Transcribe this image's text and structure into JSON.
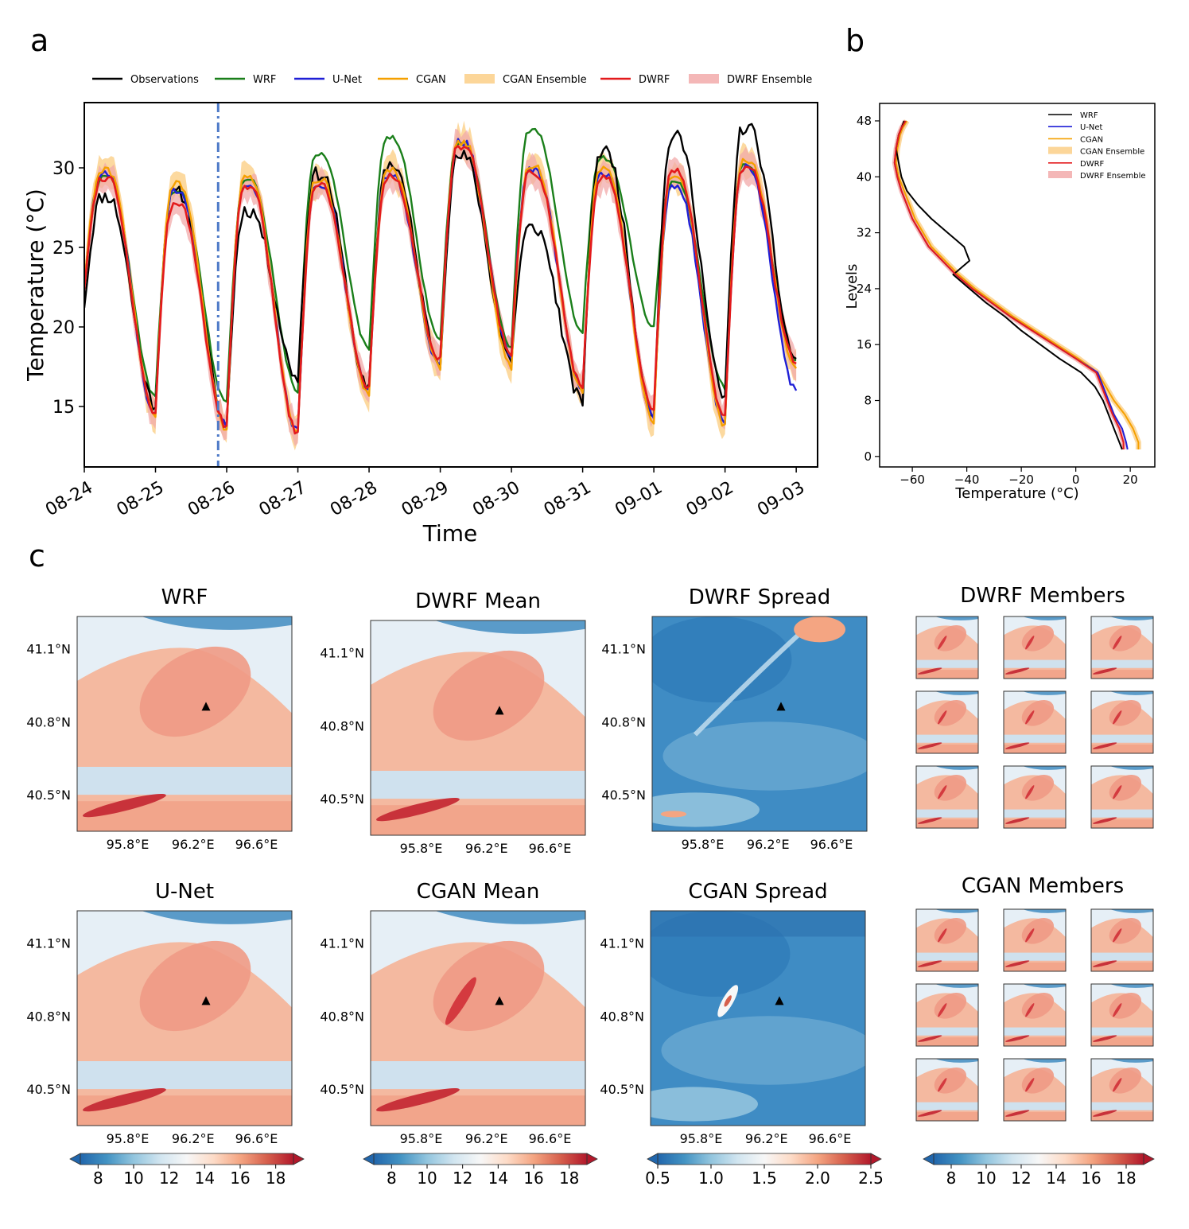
{
  "panels": {
    "a": "a",
    "b": "b",
    "c": "c"
  },
  "chart_data": [
    {
      "type": "line",
      "panel": "a",
      "xlabel": "Time",
      "ylabel": "Temperature (°C)",
      "xlim": [
        0,
        10.3
      ],
      "ylim": [
        11.2,
        34.1
      ],
      "xticks": [
        0,
        1,
        2,
        3,
        4,
        5,
        6,
        7,
        8,
        9,
        10
      ],
      "xticklabels": [
        "08-24",
        "08-25",
        "08-26",
        "08-27",
        "08-28",
        "08-29",
        "08-30",
        "08-31",
        "09-01",
        "09-02",
        "09-03"
      ],
      "yticks": [
        15,
        20,
        25,
        30
      ],
      "yticklabels": [
        "15",
        "20",
        "25",
        "30"
      ],
      "vline_x": 1.88,
      "legend": [
        "Observations",
        "WRF",
        "U-Net",
        "CGAN",
        "CGAN Ensemble",
        "DWRF",
        "DWRF Ensemble"
      ],
      "colors": {
        "Observations": "#000000",
        "WRF": "#1a7f1a",
        "U-Net": "#1f1fd6",
        "CGAN": "#f5a000",
        "CGAN Ensemble": "#fbcf87",
        "DWRF": "#e31a1c",
        "DWRF Ensemble": "#f2aaaa",
        "vline": "#4d79c7"
      },
      "daily_extremes": {
        "Observations": {
          "max": [
            28.2,
            28.4,
            27.3,
            29.6,
            30.2,
            30.7,
            26.2,
            31.0,
            31.9,
            32.5
          ],
          "min": [
            21.2,
            15.1,
            13.8,
            16.8,
            16.0,
            17.8,
            18.0,
            15.3,
            14.5,
            15.5
          ],
          "end": 18.0
        },
        "WRF": {
          "max": [
            29.4,
            28.5,
            29.2,
            30.9,
            31.9,
            31.6,
            32.3,
            30.6,
            29.1,
            30.2
          ],
          "min": [
            22.5,
            15.6,
            15.2,
            16.0,
            18.6,
            19.2,
            18.8,
            19.7,
            20.0,
            16.2
          ],
          "end": 17.9
        },
        "U-Net": {
          "max": [
            29.6,
            28.6,
            29.0,
            29.0,
            29.5,
            31.6,
            29.9,
            29.6,
            28.7,
            30.0
          ],
          "min": [
            22.8,
            14.4,
            13.8,
            13.4,
            16.0,
            17.5,
            18.2,
            16.2,
            14.5,
            14.0
          ],
          "end": 16.0
        },
        "CGAN": {
          "max": [
            29.8,
            29.0,
            29.3,
            29.2,
            29.8,
            31.6,
            30.1,
            30.0,
            29.5,
            30.5
          ],
          "min": [
            22.8,
            14.5,
            13.6,
            13.3,
            15.8,
            17.4,
            17.5,
            16.0,
            14.0,
            13.8
          ],
          "end": 17.4
        },
        "DWRF": {
          "max": [
            29.4,
            27.7,
            28.8,
            28.9,
            29.4,
            31.4,
            29.7,
            29.3,
            29.8,
            30.0
          ],
          "min": [
            22.5,
            14.6,
            13.7,
            13.3,
            16.2,
            18.0,
            18.4,
            16.3,
            14.7,
            14.2
          ],
          "end": 17.7
        }
      }
    },
    {
      "type": "line",
      "panel": "b",
      "xlabel": "Temperature (°C)",
      "ylabel": "Levels",
      "xlim": [
        -72,
        29
      ],
      "ylim": [
        -1.5,
        50.5
      ],
      "xticks": [
        -60,
        -40,
        -20,
        0,
        20
      ],
      "xticklabels": [
        "−60",
        "−40",
        "−20",
        "0",
        "20"
      ],
      "yticks": [
        0,
        8,
        16,
        24,
        32,
        40,
        48
      ],
      "yticklabels": [
        "0",
        "8",
        "16",
        "24",
        "32",
        "40",
        "48"
      ],
      "legend": [
        "WRF",
        "U-Net",
        "CGAN",
        "CGAN Ensemble",
        "DWRF",
        "DWRF Ensemble"
      ],
      "series": [
        {
          "name": "WRF",
          "levels": [
            1,
            2,
            4,
            6,
            8,
            10,
            12,
            14,
            16,
            18,
            20,
            22,
            24,
            26,
            28,
            29,
            30,
            31,
            32,
            34,
            36,
            38,
            40,
            42,
            44,
            46,
            47,
            48
          ],
          "temperature": [
            17,
            16,
            14,
            12,
            10,
            7,
            2,
            -6,
            -13,
            -20,
            -26,
            -33,
            -39,
            -45,
            -39,
            -40,
            -41,
            -44,
            -47,
            -53,
            -58,
            -62,
            -64,
            -65,
            -66,
            -65,
            -64,
            -63
          ]
        },
        {
          "name": "U-Net",
          "levels": [
            1,
            2,
            4,
            6,
            8,
            10,
            12,
            14,
            16,
            18,
            20,
            22,
            24,
            26,
            28,
            30,
            32,
            34,
            36,
            38,
            40,
            42,
            44,
            46,
            47,
            48
          ],
          "temperature": [
            19,
            18.5,
            17,
            14,
            12,
            10,
            8,
            0,
            -8,
            -16,
            -24,
            -31,
            -38,
            -44,
            -49,
            -54,
            -57,
            -60,
            -62,
            -64,
            -65.5,
            -66.5,
            -66,
            -65,
            -64,
            -62.5
          ]
        },
        {
          "name": "CGAN",
          "levels": [
            1,
            2,
            4,
            6,
            8,
            10,
            12,
            14,
            16,
            18,
            20,
            22,
            24,
            26,
            28,
            30,
            32,
            34,
            36,
            38,
            40,
            42,
            44,
            46,
            47,
            48
          ],
          "temperature": [
            23,
            23,
            21,
            18,
            14,
            11,
            8,
            1,
            -7,
            -15,
            -23,
            -30,
            -37,
            -43,
            -48,
            -53,
            -56,
            -59,
            -61,
            -63,
            -65,
            -66,
            -65.5,
            -64.5,
            -63.5,
            -62
          ]
        },
        {
          "name": "DWRF",
          "levels": [
            1,
            2,
            4,
            6,
            8,
            10,
            12,
            14,
            16,
            18,
            20,
            22,
            24,
            26,
            28,
            30,
            32,
            34,
            36,
            38,
            40,
            42,
            44,
            46,
            47,
            48
          ],
          "temperature": [
            17.5,
            17.5,
            16,
            13.5,
            11.5,
            9.5,
            7.5,
            0,
            -8,
            -16,
            -24,
            -31,
            -38,
            -44,
            -49,
            -54,
            -57,
            -60,
            -62,
            -64,
            -65.5,
            -66.5,
            -66,
            -65,
            -64,
            -62.5
          ]
        }
      ]
    },
    {
      "type": "heatmap",
      "panel": "c",
      "maps": [
        {
          "title": "WRF",
          "xticklabels": [
            "95.8°E",
            "96.2°E",
            "96.6°E"
          ],
          "yticklabels": [
            "41.1°N",
            "40.8°N",
            "40.5°N"
          ],
          "colorscale": "temperature"
        },
        {
          "title": "DWRF Mean",
          "xticklabels": [
            "95.8°E",
            "96.2°E",
            "96.6°E"
          ],
          "yticklabels": [
            "41.1°N",
            "40.8°N",
            "40.5°N"
          ],
          "colorscale": "temperature"
        },
        {
          "title": "DWRF Spread",
          "xticklabels": [
            "95.8°E",
            "96.2°E",
            "96.6°E"
          ],
          "yticklabels": [
            "41.1°N",
            "40.8°N",
            "40.5°N"
          ],
          "colorscale": "spread"
        },
        {
          "title": "DWRF Members",
          "members": 9,
          "colorscale": "temperature"
        },
        {
          "title": "U-Net",
          "xticklabels": [
            "95.8°E",
            "96.2°E",
            "96.6°E"
          ],
          "yticklabels": [
            "41.1°N",
            "40.8°N",
            "40.5°N"
          ],
          "colorscale": "temperature"
        },
        {
          "title": "CGAN Mean",
          "xticklabels": [
            "95.8°E",
            "96.2°E",
            "96.6°E"
          ],
          "yticklabels": [
            "41.1°N",
            "40.8°N",
            "40.5°N"
          ],
          "colorscale": "temperature"
        },
        {
          "title": "CGAN Spread",
          "xticklabels": [
            "95.8°E",
            "96.2°E",
            "96.6°E"
          ],
          "yticklabels": [
            "41.1°N",
            "40.8°N",
            "40.5°N"
          ],
          "colorscale": "spread"
        },
        {
          "title": "CGAN Members",
          "members": 9,
          "colorscale": "temperature"
        }
      ],
      "colorbars": [
        {
          "range": [
            7,
            19
          ],
          "ticks": [
            8,
            10,
            12,
            14,
            16,
            18
          ],
          "ticklabels": [
            "8",
            "10",
            "12",
            "14",
            "16",
            "18"
          ]
        },
        {
          "range": [
            7,
            19
          ],
          "ticks": [
            8,
            10,
            12,
            14,
            16,
            18
          ],
          "ticklabels": [
            "8",
            "10",
            "12",
            "14",
            "16",
            "18"
          ]
        },
        {
          "range": [
            0.5,
            2.5
          ],
          "ticks": [
            0.5,
            1.0,
            1.5,
            2.0,
            2.5
          ],
          "ticklabels": [
            "0.5",
            "1.0",
            "1.5",
            "2.0",
            "2.5"
          ]
        },
        {
          "range": [
            7,
            19
          ],
          "ticks": [
            8,
            10,
            12,
            14,
            16,
            18
          ],
          "ticklabels": [
            "8",
            "10",
            "12",
            "14",
            "16",
            "18"
          ]
        }
      ],
      "station_marker": "triangle",
      "colormap": [
        "#2166ac",
        "#4393c3",
        "#92c5de",
        "#d1e5f0",
        "#f7f7f7",
        "#fddbc7",
        "#f4a582",
        "#d6604d",
        "#b2182b"
      ]
    }
  ]
}
